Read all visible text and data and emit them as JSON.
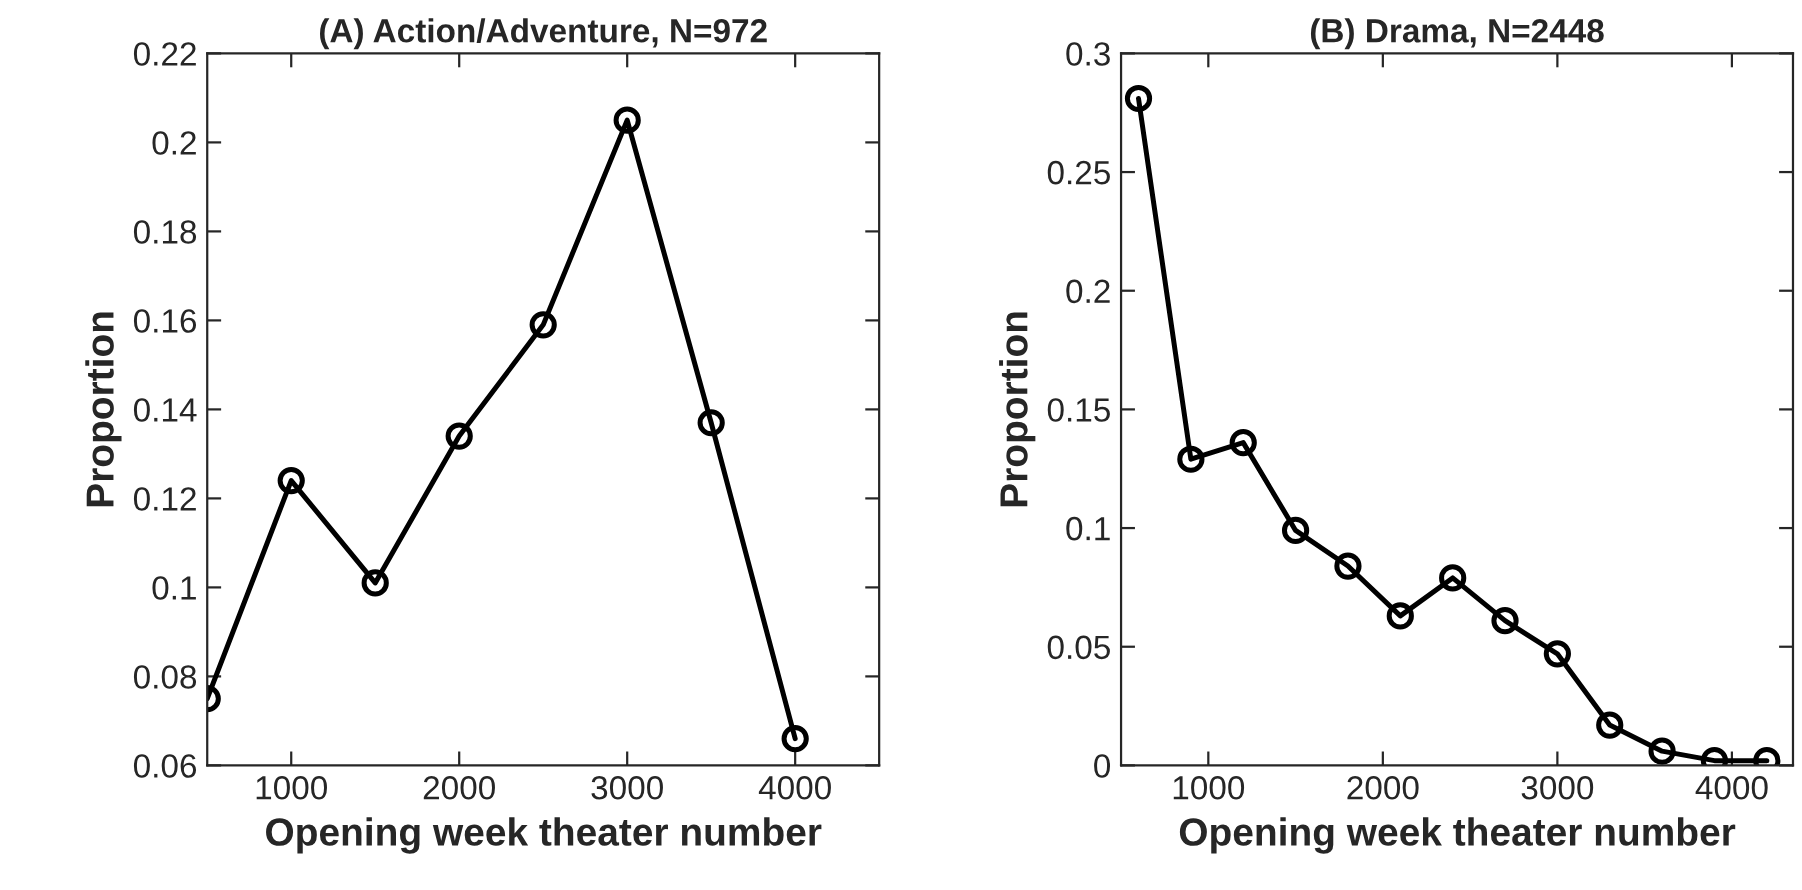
{
  "chart_data": [
    {
      "type": "line",
      "title": "(A) Action/Adventure, N=972",
      "xlabel": "Opening week theater number",
      "ylabel": "Proportion",
      "marker": "circle",
      "line_style": "solid",
      "grid": false,
      "legend": false,
      "x": [
        500,
        1000,
        1500,
        2000,
        2500,
        3000,
        3500,
        4000
      ],
      "series": [
        {
          "color": "#000000",
          "values": [
            0.075,
            0.124,
            0.101,
            0.134,
            0.159,
            0.205,
            0.137,
            0.066
          ]
        }
      ],
      "xlim": [
        500,
        4500
      ],
      "xticks": [
        1000,
        2000,
        3000,
        4000
      ],
      "ylim": [
        0.06,
        0.22
      ],
      "yticks": [
        0.06,
        0.08,
        0.1,
        0.12,
        0.14,
        0.16,
        0.18,
        0.2,
        0.22
      ]
    },
    {
      "type": "line",
      "title": "(B) Drama, N=2448",
      "xlabel": "Opening week theater number",
      "ylabel": "Proportion",
      "marker": "circle",
      "line_style": "solid",
      "grid": false,
      "legend": false,
      "x": [
        600,
        900,
        1200,
        1500,
        1800,
        2100,
        2400,
        2700,
        3000,
        3300,
        3600,
        3900,
        4200
      ],
      "series": [
        {
          "color": "#000000",
          "values": [
            0.281,
            0.129,
            0.136,
            0.099,
            0.084,
            0.063,
            0.079,
            0.061,
            0.047,
            0.017,
            0.006,
            0.002,
            0.002
          ]
        }
      ],
      "xlim": [
        500,
        4350
      ],
      "xticks": [
        1000,
        2000,
        3000,
        4000
      ],
      "ylim": [
        0,
        0.3
      ],
      "yticks": [
        0,
        0.05,
        0.1,
        0.15,
        0.2,
        0.25,
        0.3
      ]
    }
  ]
}
